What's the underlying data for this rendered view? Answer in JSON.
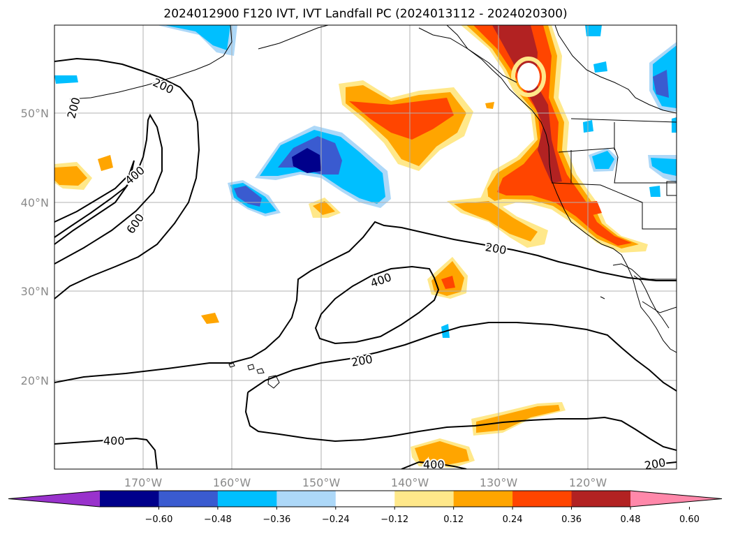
{
  "title": "2024012900 F120 IVT, IVT Landfall PC (2024013112 - 2024020300)",
  "latitude_labels": [
    "50°N",
    "40°N",
    "30°N",
    "20°N"
  ],
  "longitude_labels": [
    "170°W",
    "160°W",
    "150°W",
    "140°W",
    "130°W",
    "120°W"
  ],
  "contour_labels": {
    "c200_nw": "200",
    "c200_w": "200",
    "c400_w": "400",
    "c600_w": "600",
    "c200_e": "200",
    "c400_center": "400",
    "c200_south": "200",
    "c400_sw": "400",
    "c400_bottom": "400",
    "c200_se": "200"
  },
  "colorbar": {
    "ticks": [
      "−0.60",
      "−0.48",
      "−0.36",
      "−0.24",
      "−0.12",
      "0.12",
      "0.24",
      "0.36",
      "0.48",
      "0.60"
    ],
    "colors": [
      "#9932cc",
      "#00008b",
      "#3a5bd0",
      "#00bfff",
      "#add8f8",
      "#ffffff",
      "#ffe88a",
      "#ffa500",
      "#ff4500",
      "#b22222",
      "#ff88aa"
    ]
  }
}
